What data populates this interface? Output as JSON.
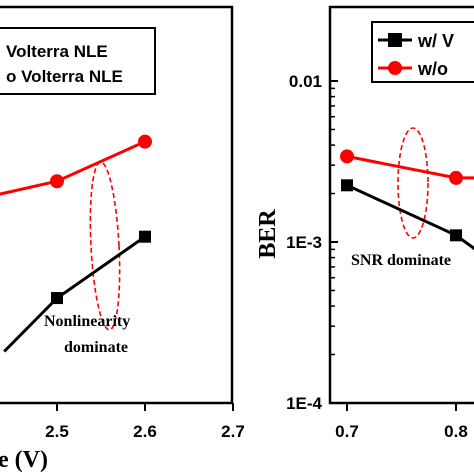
{
  "chart_data": [
    {
      "type": "line",
      "panel": "left",
      "x": [
        2.5,
        2.6
      ],
      "xticks": [
        "2.5",
        "2.6",
        "2.7"
      ],
      "xlabel": "e (V)",
      "legend": [
        "Volterra NLE",
        "o Volterra NLE"
      ],
      "series": [
        {
          "name": "w/ Volterra NLE",
          "color": "#000000",
          "marker": "square",
          "points_visible": [
            [
              2.5,
              0.265
            ],
            [
              2.6,
              0.42
            ]
          ],
          "edge_entry": [
            2.44,
            0.13
          ]
        },
        {
          "name": "w/o Volterra NLE",
          "color": "#ff0000",
          "marker": "circle",
          "points_visible": [
            [
              2.5,
              0.56
            ],
            [
              2.6,
              0.66
            ]
          ],
          "edge_entry": [
            2.42,
            0.52
          ]
        }
      ],
      "annotation": [
        "Nonlinearity",
        "dominate"
      ]
    },
    {
      "type": "line",
      "panel": "right",
      "x": [
        0.7,
        0.8
      ],
      "xticks": [
        "0.7",
        "0.8"
      ],
      "yscale": "log",
      "yticks": [
        "0.01",
        "1E-3",
        "1E-4"
      ],
      "ylabel": "BER",
      "legend": [
        "w/ V",
        "w/o"
      ],
      "series": [
        {
          "name": "w/ V",
          "color": "#000000",
          "marker": "square",
          "points": [
            [
              0.7,
              0.00225
            ],
            [
              0.8,
              0.0011
            ]
          ],
          "edge_exit": [
            0.84,
            0.0007
          ]
        },
        {
          "name": "w/o",
          "color": "#ff0000",
          "marker": "circle",
          "points": [
            [
              0.7,
              0.0034
            ],
            [
              0.8,
              0.0025
            ]
          ],
          "edge_exit": [
            0.84,
            0.0025
          ]
        }
      ],
      "annotation": "SNR dominate"
    }
  ]
}
